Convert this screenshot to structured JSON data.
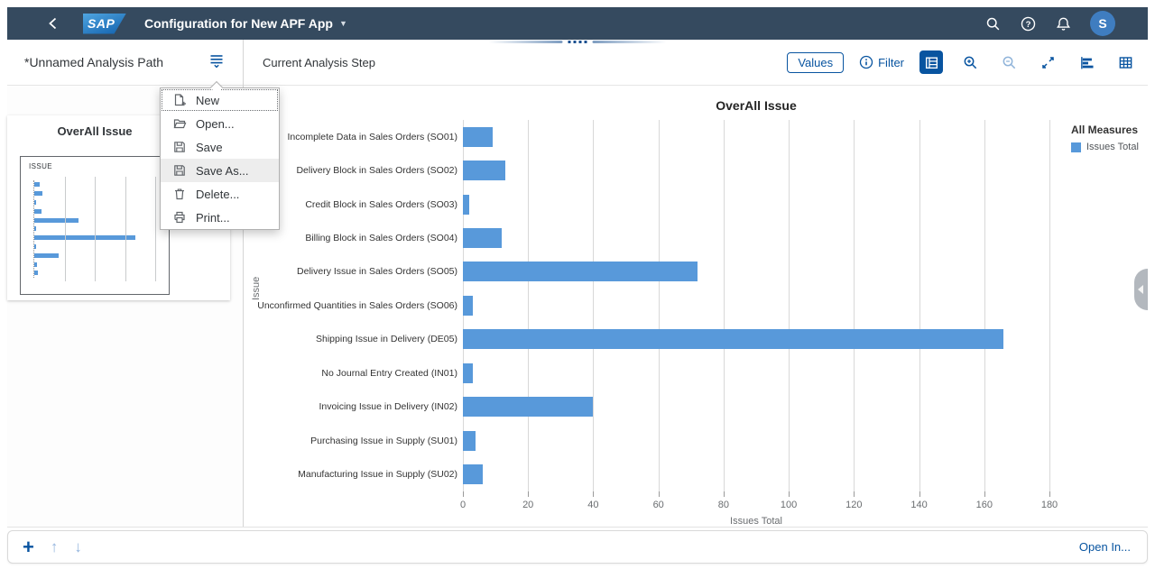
{
  "shellbar": {
    "logo_text": "SAP",
    "title": "Configuration for New APF App",
    "avatar_initial": "S"
  },
  "left_panel": {
    "path_title": "*Unnamed Analysis Path",
    "card": {
      "title": "OverAll Issue",
      "dimension_label": "ISSUE"
    }
  },
  "menu": {
    "items": [
      {
        "label": "New",
        "icon": "new-icon"
      },
      {
        "label": "Open...",
        "icon": "open-folder-icon"
      },
      {
        "label": "Save",
        "icon": "save-icon"
      },
      {
        "label": "Save As...",
        "icon": "save-as-icon"
      },
      {
        "label": "Delete...",
        "icon": "delete-icon"
      },
      {
        "label": "Print...",
        "icon": "print-icon"
      }
    ]
  },
  "toolbar": {
    "step_label": "Current Analysis Step",
    "values_button": "Values",
    "filter_label": "Filter"
  },
  "chart_data": {
    "type": "bar",
    "orientation": "horizontal",
    "title": "OverAll Issue",
    "categories": [
      "Incomplete Data in Sales Orders (SO01)",
      "Delivery Block in Sales Orders (SO02)",
      "Credit Block in Sales Orders (SO03)",
      "Billing Block in Sales Orders (SO04)",
      "Delivery Issue in Sales Orders (SO05)",
      "Unconfirmed Quantities in Sales Orders (SO06)",
      "Shipping Issue in Delivery (DE05)",
      "No Journal Entry Created (IN01)",
      "Invoicing Issue in Delivery (IN02)",
      "Purchasing Issue in Supply (SU01)",
      "Manufacturing Issue in Supply (SU02)"
    ],
    "values": [
      9,
      13,
      2,
      12,
      72,
      3,
      166,
      3,
      40,
      4,
      6
    ],
    "xlabel": "Issues Total",
    "ylabel": "Issue",
    "xlim": [
      0,
      180
    ],
    "xticks": [
      0,
      20,
      40,
      60,
      80,
      100,
      120,
      140,
      160,
      180
    ],
    "grid": true,
    "legend": {
      "position": "right",
      "title": "All Measures",
      "items": [
        {
          "label": "Issues Total",
          "color": "#5899DA"
        }
      ]
    }
  },
  "footer": {
    "add_label": "+",
    "move_up_label": "↑",
    "move_down_label": "↓",
    "open_in_label": "Open In..."
  },
  "colors": {
    "accent": "#0854A0",
    "bar": "#5899DA",
    "shellbar_bg": "#354A5F"
  }
}
